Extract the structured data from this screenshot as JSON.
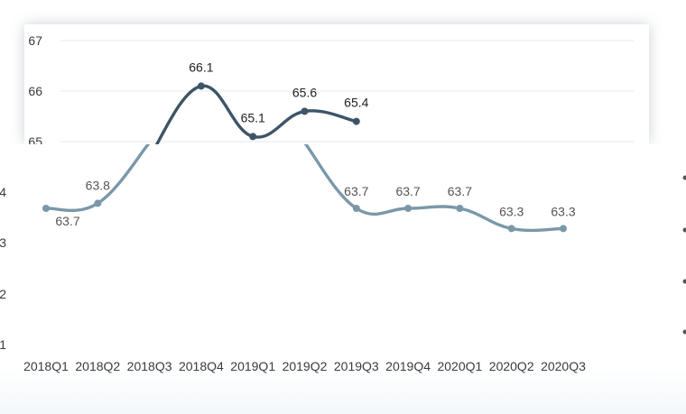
{
  "chart_data": [
    {
      "type": "line",
      "categories": [
        "2018Q1",
        "2018Q2",
        "2018Q3",
        "2018Q4",
        "2019Q1",
        "2019Q2",
        "2019Q3",
        "2019Q4",
        "2020Q1",
        "2020Q2",
        "2020Q3"
      ],
      "series": [
        {
          "values": [
            null,
            null,
            64.7,
            66.1,
            65.1,
            65.6,
            65.4,
            null,
            null,
            null,
            null
          ]
        }
      ],
      "data_labels": [
        "",
        "",
        "",
        "66.1",
        "65.1",
        "65.6",
        "65.4",
        "",
        "",
        "",
        ""
      ],
      "y_ticks": [
        "65",
        "66",
        "67"
      ],
      "ylim": [
        64.5,
        67
      ],
      "grid": true,
      "colors": {
        "line": "#3d5566",
        "grid": "#e4e8ec",
        "axis_text": "#3a3a3a",
        "label": "#222222"
      }
    },
    {
      "type": "line",
      "categories": [
        "2018Q1",
        "2018Q2",
        "2018Q3",
        "2018Q4",
        "2019Q1",
        "2019Q2",
        "2019Q3",
        "2019Q4",
        "2020Q1",
        "2020Q2",
        "2020Q3"
      ],
      "series": [
        {
          "values": [
            63.7,
            63.8,
            65.0,
            null,
            null,
            65.0,
            63.7,
            63.7,
            63.7,
            63.3,
            63.3
          ]
        }
      ],
      "data_labels": [
        "63.7",
        "63.8",
        "",
        "",
        "",
        "",
        "63.7",
        "63.7",
        "63.7",
        "63.3",
        "63.3"
      ],
      "y_ticks": [
        "1",
        "2",
        "3",
        "4"
      ],
      "x_tick_labels": [
        "2018Q1",
        "2018Q2",
        "2018Q3",
        "2018Q4",
        "2019Q1",
        "2019Q2",
        "2019Q3",
        "2019Q4",
        "2020Q1",
        "2020Q2",
        "2020Q3"
      ],
      "grid": false,
      "colors": {
        "line": "#7a98a8",
        "axis_text": "#3a3a3a",
        "label": "#555555"
      }
    }
  ]
}
